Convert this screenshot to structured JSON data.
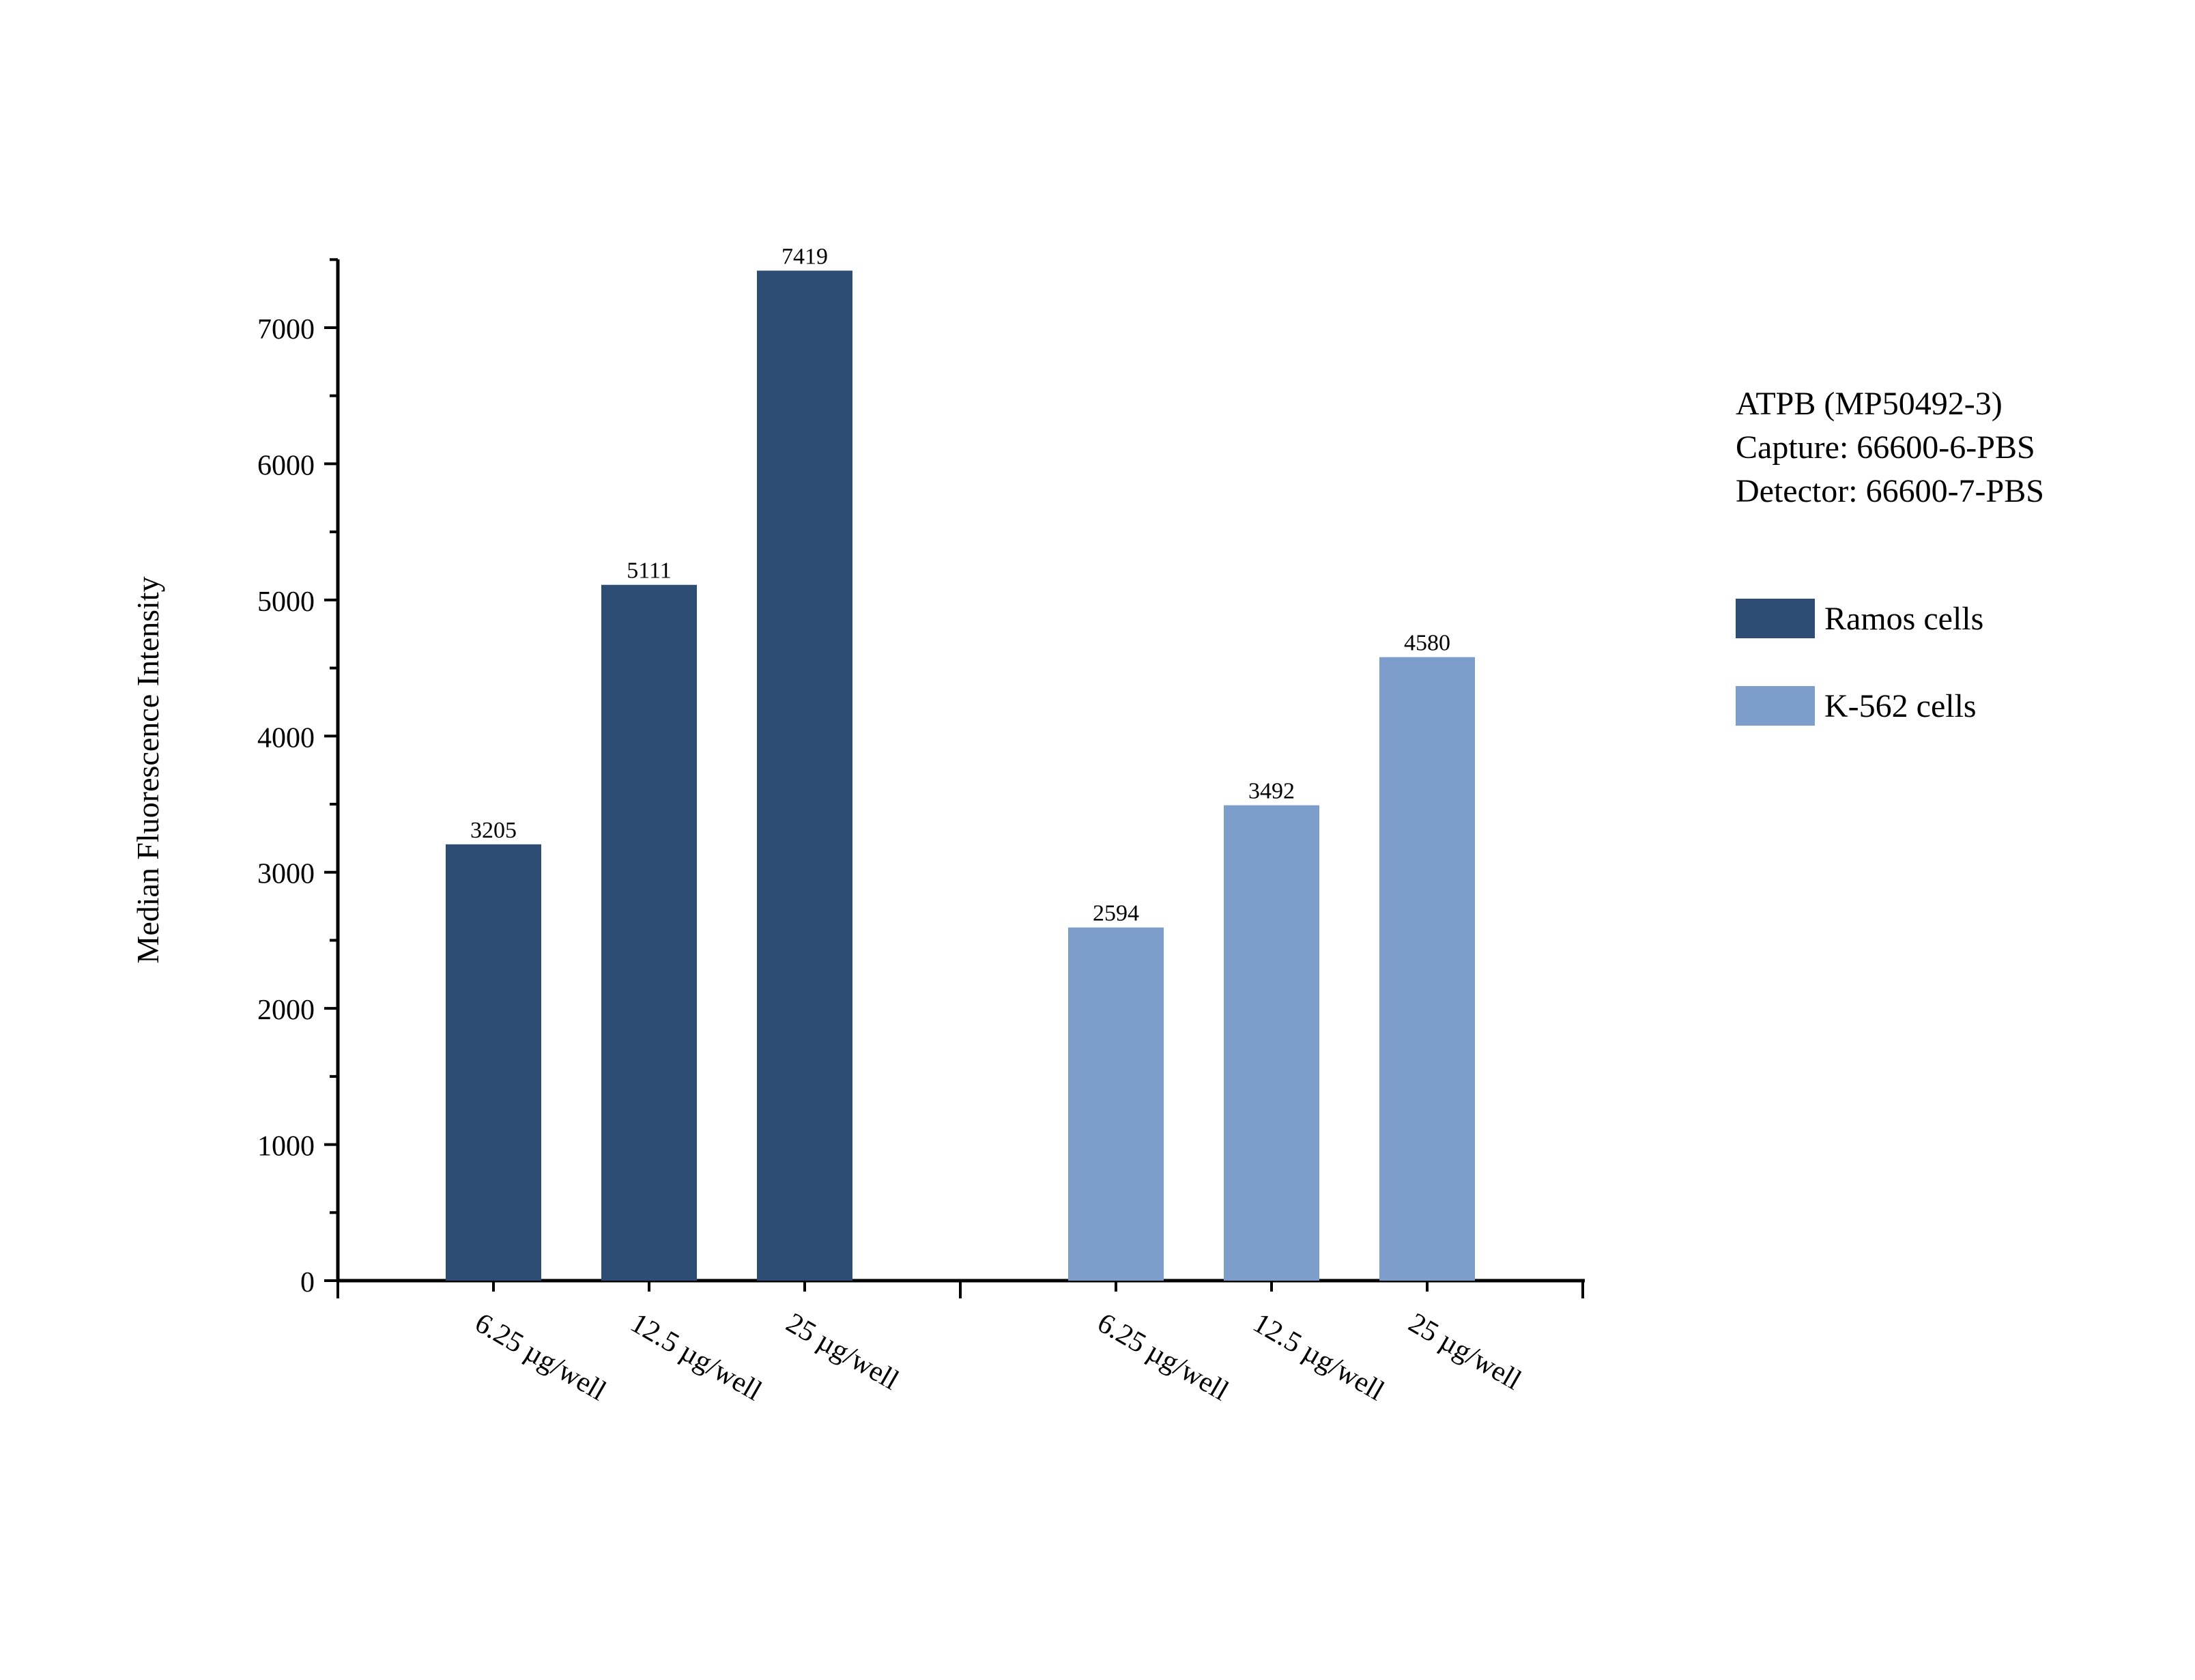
{
  "chart_data": {
    "type": "bar",
    "title": "",
    "ylabel": "Median Fluorescence Intensity",
    "xlabel": "",
    "ylim": [
      0,
      7500
    ],
    "yticks": [
      0,
      1000,
      2000,
      3000,
      4000,
      5000,
      6000,
      7000
    ],
    "grid": false,
    "legend_position": "right",
    "groups": [
      {
        "series": "Ramos cells",
        "color": "#2e4d75",
        "categories": [
          "6.25 µg/well",
          "12.5 µg/well",
          "25 µg/well"
        ],
        "values": [
          3205,
          5111,
          7419
        ],
        "labels": [
          "3205",
          "5111",
          "7419"
        ]
      },
      {
        "series": "K-562 cells",
        "color": "#7d9ecb",
        "categories": [
          "6.25 µg/well",
          "12.5 µg/well",
          "25 µg/well"
        ],
        "values": [
          2594,
          3492,
          4580
        ],
        "labels": [
          "2594",
          "3492",
          "4580"
        ]
      }
    ]
  },
  "info": {
    "line1": "ATPB (MP50492-3)",
    "line2": "Capture: 66600-6-PBS",
    "line3": "Detector: 66600-7-PBS"
  },
  "legend": [
    {
      "label": "Ramos cells",
      "color": "#2e4d75"
    },
    {
      "label": "K-562 cells",
      "color": "#7d9ecb"
    }
  ]
}
